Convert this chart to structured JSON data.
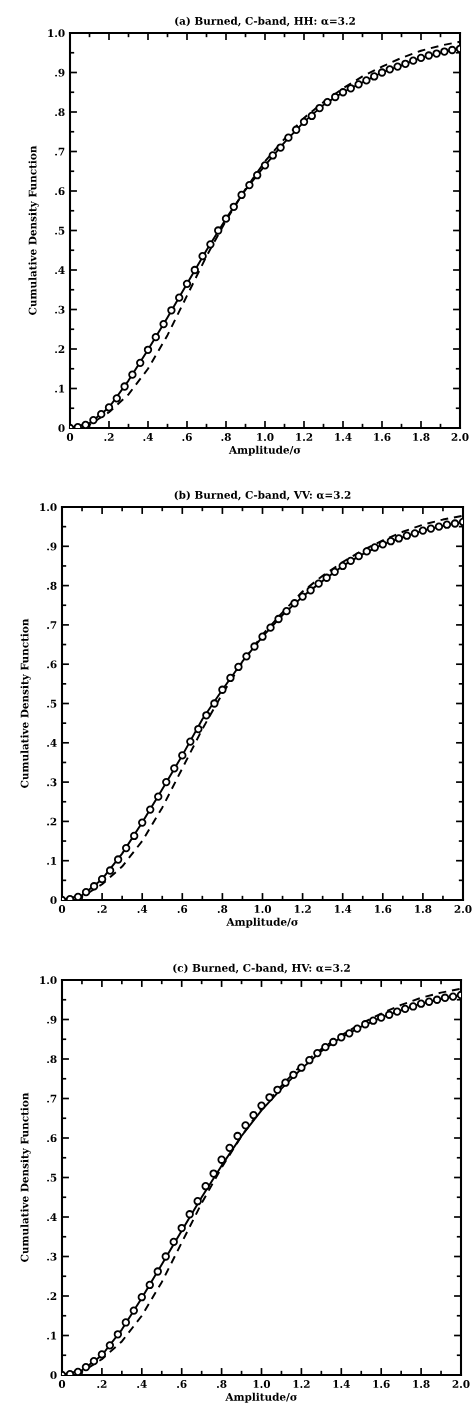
{
  "chart_data": [
    {
      "type": "line",
      "title": "(a) Burned, C-band, HH: α=3.2",
      "xlabel": "Amplitude/σ",
      "ylabel": "Cumulative Density Function",
      "xlim": [
        0,
        2.0
      ],
      "ylim": [
        0,
        1.0
      ],
      "xticks": [
        0,
        {
          "value": 0.2,
          "label": ".2"
        },
        {
          "value": 0.4,
          "label": ".4"
        },
        {
          "value": 0.6,
          "label": ".6"
        },
        {
          "value": 0.8,
          "label": ".8"
        },
        {
          "value": 1.0,
          "label": "1.0"
        },
        {
          "value": 1.2,
          "label": "1.2"
        },
        {
          "value": 1.4,
          "label": "1.4"
        },
        {
          "value": 1.6,
          "label": "1.6"
        },
        {
          "value": 1.8,
          "label": "1.8"
        },
        {
          "value": 2.0,
          "label": "2.0"
        }
      ],
      "yticks": [
        0,
        {
          "value": 0.1,
          "label": ".1"
        },
        {
          "value": 0.2,
          "label": ".2"
        },
        {
          "value": 0.3,
          "label": ".3"
        },
        {
          "value": 0.4,
          "label": ".4"
        },
        {
          "value": 0.5,
          "label": ".5"
        },
        {
          "value": 0.6,
          "label": ".6"
        },
        {
          "value": 0.7,
          "label": ".7"
        },
        {
          "value": 0.8,
          "label": ".8"
        },
        {
          "value": 0.9,
          "label": ".9"
        },
        {
          "value": 1.0,
          "label": "1.0"
        }
      ],
      "grid": false,
      "legend": false,
      "series": [
        {
          "type": "scatter",
          "marker": "circle",
          "color": "#000000",
          "x": [
            0,
            0.04,
            0.08,
            0.12,
            0.16,
            0.2,
            0.24,
            0.28,
            0.32,
            0.36,
            0.4,
            0.44,
            0.48,
            0.52,
            0.56,
            0.6,
            0.64,
            0.68,
            0.72,
            0.76,
            0.8,
            0.84,
            0.88,
            0.92,
            0.96,
            1.0,
            1.04,
            1.08,
            1.12,
            1.16,
            1.2,
            1.24,
            1.28,
            1.32,
            1.36,
            1.4,
            1.44,
            1.48,
            1.52,
            1.56,
            1.6,
            1.64,
            1.68,
            1.72,
            1.76,
            1.8,
            1.84,
            1.88,
            1.92,
            1.96,
            2.0
          ],
          "values": [
            0,
            0.002,
            0.008,
            0.02,
            0.035,
            0.052,
            0.075,
            0.105,
            0.135,
            0.165,
            0.198,
            0.23,
            0.263,
            0.298,
            0.33,
            0.365,
            0.4,
            0.435,
            0.465,
            0.5,
            0.53,
            0.56,
            0.59,
            0.615,
            0.64,
            0.665,
            0.69,
            0.71,
            0.735,
            0.755,
            0.775,
            0.79,
            0.81,
            0.825,
            0.838,
            0.85,
            0.86,
            0.87,
            0.88,
            0.89,
            0.9,
            0.908,
            0.915,
            0.922,
            0.93,
            0.937,
            0.943,
            0.948,
            0.953,
            0.957,
            0.96
          ]
        },
        {
          "line_style": "solid",
          "color": "#000000",
          "x": [
            0,
            0.1,
            0.2,
            0.3,
            0.4,
            0.5,
            0.6,
            0.7,
            0.8,
            0.9,
            1.0,
            1.1,
            1.2,
            1.3,
            1.4,
            1.5,
            1.6,
            1.7,
            1.8,
            1.9,
            2.0
          ],
          "values": [
            0,
            0.012,
            0.052,
            0.12,
            0.198,
            0.28,
            0.365,
            0.45,
            0.53,
            0.603,
            0.665,
            0.723,
            0.775,
            0.818,
            0.85,
            0.875,
            0.9,
            0.918,
            0.937,
            0.95,
            0.96
          ]
        },
        {
          "type": "line",
          "line_style": "dashed",
          "color": "#000000",
          "x": [
            0,
            0.1,
            0.2,
            0.3,
            0.4,
            0.5,
            0.6,
            0.7,
            0.8,
            0.9,
            1.0,
            1.1,
            1.2,
            1.3,
            1.4,
            1.5,
            1.6,
            1.7,
            1.8,
            1.9,
            2.0
          ],
          "values": [
            0,
            0.008,
            0.04,
            0.085,
            0.15,
            0.235,
            0.335,
            0.435,
            0.525,
            0.605,
            0.675,
            0.732,
            0.785,
            0.825,
            0.86,
            0.89,
            0.915,
            0.937,
            0.955,
            0.968,
            0.978
          ]
        }
      ]
    },
    {
      "type": "line",
      "title": "(b) Burned, C-band, VV: α=3.2",
      "xlabel": "Amplitude/σ",
      "ylabel": "Cumulative Density Function",
      "xlim": [
        0,
        2.0
      ],
      "ylim": [
        0,
        1.0
      ],
      "xticks": [
        0,
        {
          "value": 0.2,
          "label": ".2"
        },
        {
          "value": 0.4,
          "label": ".4"
        },
        {
          "value": 0.6,
          "label": ".6"
        },
        {
          "value": 0.8,
          "label": ".8"
        },
        {
          "value": 1.0,
          "label": "1.0"
        },
        {
          "value": 1.2,
          "label": "1.2"
        },
        {
          "value": 1.4,
          "label": "1.4"
        },
        {
          "value": 1.6,
          "label": "1.6"
        },
        {
          "value": 1.8,
          "label": "1.8"
        },
        {
          "value": 2.0,
          "label": "2.0"
        }
      ],
      "yticks": [
        0,
        {
          "value": 0.1,
          "label": ".1"
        },
        {
          "value": 0.2,
          "label": ".2"
        },
        {
          "value": 0.3,
          "label": ".3"
        },
        {
          "value": 0.4,
          "label": ".4"
        },
        {
          "value": 0.5,
          "label": ".5"
        },
        {
          "value": 0.6,
          "label": ".6"
        },
        {
          "value": 0.7,
          "label": ".7"
        },
        {
          "value": 0.8,
          "label": ".8"
        },
        {
          "value": 0.9,
          "label": ".9"
        },
        {
          "value": 1.0,
          "label": "1.0"
        }
      ],
      "grid": false,
      "legend": false,
      "series": [
        {
          "type": "scatter",
          "marker": "circle",
          "color": "#000000",
          "x": [
            0,
            0.04,
            0.08,
            0.12,
            0.16,
            0.2,
            0.24,
            0.28,
            0.32,
            0.36,
            0.4,
            0.44,
            0.48,
            0.52,
            0.56,
            0.6,
            0.64,
            0.68,
            0.72,
            0.76,
            0.8,
            0.84,
            0.88,
            0.92,
            0.96,
            1.0,
            1.04,
            1.08,
            1.12,
            1.16,
            1.2,
            1.24,
            1.28,
            1.32,
            1.36,
            1.4,
            1.44,
            1.48,
            1.52,
            1.56,
            1.6,
            1.64,
            1.68,
            1.72,
            1.76,
            1.8,
            1.84,
            1.88,
            1.92,
            1.96,
            2.0
          ],
          "values": [
            0,
            0.002,
            0.008,
            0.02,
            0.035,
            0.053,
            0.075,
            0.103,
            0.132,
            0.163,
            0.197,
            0.23,
            0.263,
            0.3,
            0.335,
            0.368,
            0.403,
            0.435,
            0.47,
            0.5,
            0.535,
            0.565,
            0.593,
            0.62,
            0.645,
            0.67,
            0.693,
            0.715,
            0.735,
            0.755,
            0.772,
            0.788,
            0.805,
            0.82,
            0.835,
            0.85,
            0.863,
            0.875,
            0.887,
            0.897,
            0.905,
            0.913,
            0.92,
            0.927,
            0.933,
            0.94,
            0.945,
            0.95,
            0.955,
            0.958,
            0.962
          ]
        },
        {
          "line_style": "solid",
          "color": "#000000",
          "x": [
            0,
            0.1,
            0.2,
            0.3,
            0.4,
            0.5,
            0.6,
            0.7,
            0.8,
            0.9,
            1.0,
            1.1,
            1.2,
            1.3,
            1.4,
            1.5,
            1.6,
            1.7,
            1.8,
            1.9,
            2.0
          ],
          "values": [
            0,
            0.012,
            0.053,
            0.118,
            0.197,
            0.282,
            0.368,
            0.46,
            0.535,
            0.607,
            0.67,
            0.725,
            0.772,
            0.812,
            0.85,
            0.88,
            0.905,
            0.923,
            0.94,
            0.952,
            0.962
          ]
        },
        {
          "type": "line",
          "line_style": "dashed",
          "color": "#000000",
          "x": [
            0,
            0.1,
            0.2,
            0.3,
            0.4,
            0.5,
            0.6,
            0.7,
            0.8,
            0.9,
            1.0,
            1.1,
            1.2,
            1.3,
            1.4,
            1.5,
            1.6,
            1.7,
            1.8,
            1.9,
            2.0
          ],
          "values": [
            0,
            0.008,
            0.04,
            0.085,
            0.15,
            0.235,
            0.335,
            0.435,
            0.525,
            0.605,
            0.675,
            0.732,
            0.785,
            0.825,
            0.86,
            0.89,
            0.915,
            0.937,
            0.955,
            0.968,
            0.978
          ]
        }
      ]
    },
    {
      "type": "line",
      "title": "(c) Burned, C-band, HV: α=3.2",
      "xlabel": "Amplitude/σ",
      "ylabel": "Cumulative Density Function",
      "xlim": [
        0,
        2.0
      ],
      "ylim": [
        0,
        1.0
      ],
      "xticks": [
        0,
        {
          "value": 0.2,
          "label": ".2"
        },
        {
          "value": 0.4,
          "label": ".4"
        },
        {
          "value": 0.6,
          "label": ".6"
        },
        {
          "value": 0.8,
          "label": ".8"
        },
        {
          "value": 1.0,
          "label": "1.0"
        },
        {
          "value": 1.2,
          "label": "1.2"
        },
        {
          "value": 1.4,
          "label": "1.4"
        },
        {
          "value": 1.6,
          "label": "1.6"
        },
        {
          "value": 1.8,
          "label": "1.8"
        },
        {
          "value": 2.0,
          "label": "2.0"
        }
      ],
      "yticks": [
        0,
        {
          "value": 0.1,
          "label": ".1"
        },
        {
          "value": 0.2,
          "label": ".2"
        },
        {
          "value": 0.3,
          "label": ".3"
        },
        {
          "value": 0.4,
          "label": ".4"
        },
        {
          "value": 0.5,
          "label": ".5"
        },
        {
          "value": 0.6,
          "label": ".6"
        },
        {
          "value": 0.7,
          "label": ".7"
        },
        {
          "value": 0.8,
          "label": ".8"
        },
        {
          "value": 0.9,
          "label": ".9"
        },
        {
          "value": 1.0,
          "label": "1.0"
        }
      ],
      "grid": false,
      "legend": false,
      "series": [
        {
          "type": "scatter",
          "marker": "circle",
          "color": "#000000",
          "x": [
            0,
            0.04,
            0.08,
            0.12,
            0.16,
            0.2,
            0.24,
            0.28,
            0.32,
            0.36,
            0.4,
            0.44,
            0.48,
            0.52,
            0.56,
            0.6,
            0.64,
            0.68,
            0.72,
            0.76,
            0.8,
            0.84,
            0.88,
            0.92,
            0.96,
            1.0,
            1.04,
            1.08,
            1.12,
            1.16,
            1.2,
            1.24,
            1.28,
            1.32,
            1.36,
            1.4,
            1.44,
            1.48,
            1.52,
            1.56,
            1.6,
            1.64,
            1.68,
            1.72,
            1.76,
            1.8,
            1.84,
            1.88,
            1.92,
            1.96,
            2.0
          ],
          "values": [
            0,
            0.002,
            0.008,
            0.02,
            0.035,
            0.052,
            0.075,
            0.103,
            0.133,
            0.163,
            0.197,
            0.228,
            0.262,
            0.3,
            0.337,
            0.372,
            0.407,
            0.44,
            0.478,
            0.51,
            0.545,
            0.575,
            0.605,
            0.632,
            0.658,
            0.682,
            0.703,
            0.722,
            0.74,
            0.76,
            0.778,
            0.797,
            0.815,
            0.83,
            0.843,
            0.855,
            0.865,
            0.877,
            0.888,
            0.897,
            0.905,
            0.912,
            0.92,
            0.927,
            0.933,
            0.94,
            0.945,
            0.95,
            0.955,
            0.958,
            0.962
          ]
        },
        {
          "line_style": "solid",
          "color": "#000000",
          "x": [
            0,
            0.1,
            0.2,
            0.3,
            0.4,
            0.5,
            0.6,
            0.7,
            0.8,
            0.9,
            1.0,
            1.1,
            1.2,
            1.3,
            1.4,
            1.5,
            1.6,
            1.7,
            1.8,
            1.9,
            2.0
          ],
          "values": [
            0,
            0.012,
            0.05,
            0.115,
            0.195,
            0.28,
            0.365,
            0.45,
            0.53,
            0.605,
            0.67,
            0.725,
            0.775,
            0.82,
            0.855,
            0.882,
            0.905,
            0.923,
            0.94,
            0.952,
            0.962
          ]
        },
        {
          "type": "line",
          "line_style": "dashed",
          "color": "#000000",
          "x": [
            0,
            0.1,
            0.2,
            0.3,
            0.4,
            0.5,
            0.6,
            0.7,
            0.8,
            0.9,
            1.0,
            1.1,
            1.2,
            1.3,
            1.4,
            1.5,
            1.6,
            1.7,
            1.8,
            1.9,
            2.0
          ],
          "values": [
            0,
            0.008,
            0.04,
            0.085,
            0.15,
            0.235,
            0.335,
            0.435,
            0.525,
            0.605,
            0.675,
            0.732,
            0.785,
            0.825,
            0.86,
            0.89,
            0.915,
            0.937,
            0.955,
            0.968,
            0.978
          ]
        }
      ]
    }
  ]
}
